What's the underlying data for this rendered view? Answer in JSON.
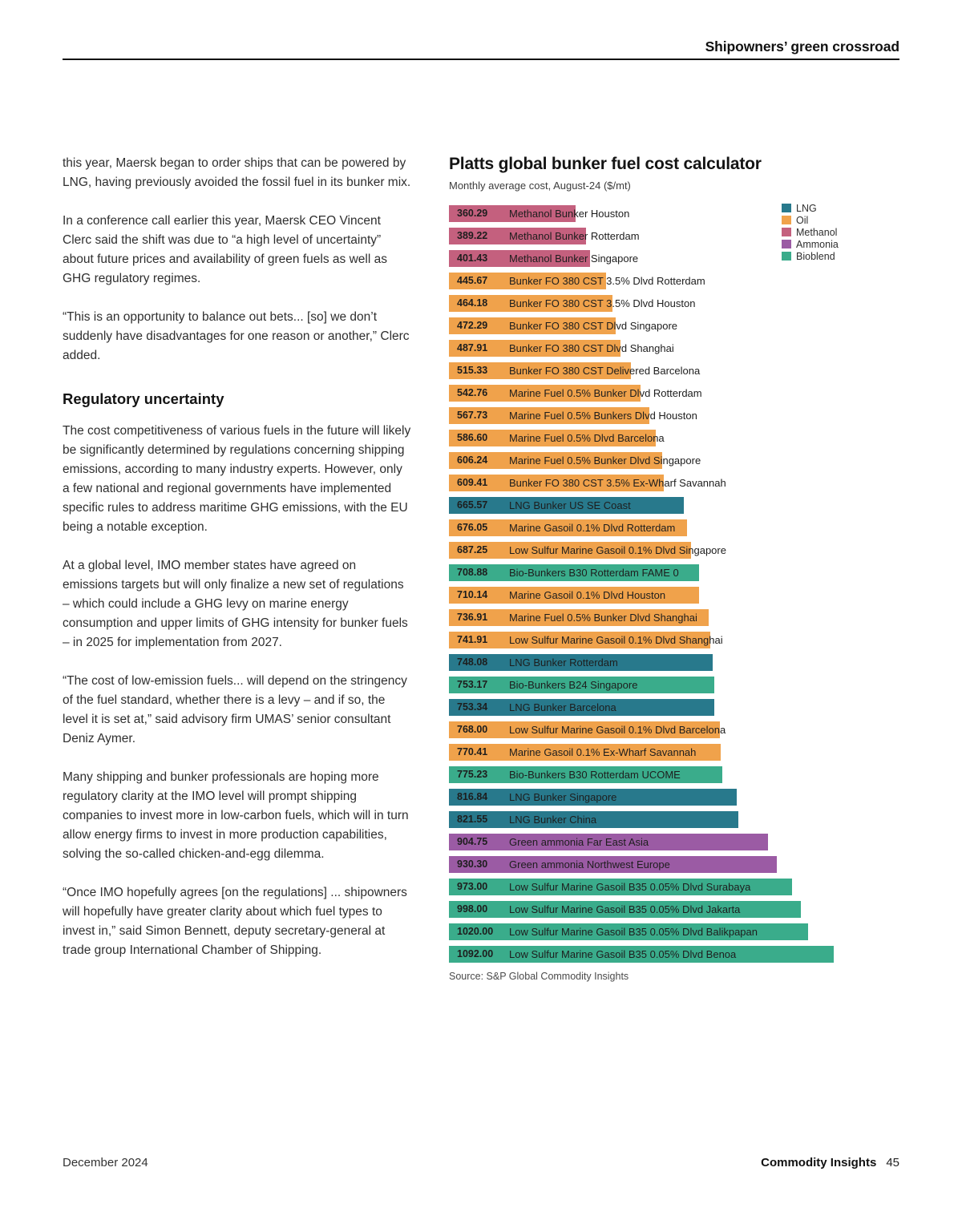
{
  "page": {
    "header": "Shipowners’ green crossroad",
    "footer_left": "December 2024",
    "footer_brand": "Commodity Insights",
    "footer_page": "45"
  },
  "article": {
    "blocks": [
      {
        "type": "p",
        "text": "this year, Maersk began to order ships that can be powered by LNG, having previously avoided the fossil fuel in its bunker mix."
      },
      {
        "type": "p",
        "text": "In a conference call earlier this year, Maersk CEO Vincent Clerc said the shift was due to “a high level of uncertainty” about future prices and availability of green fuels as well as GHG regulatory regimes."
      },
      {
        "type": "p",
        "text": "“This is an opportunity to balance out bets... [so] we don’t suddenly have disadvantages for one reason or another,” Clerc added."
      },
      {
        "type": "h2",
        "text": "Regulatory uncertainty"
      },
      {
        "type": "p",
        "text": "The cost competitiveness of various fuels in the future will likely be significantly determined by regulations concerning shipping emissions, according to many industry experts. However, only a few national and regional governments have implemented specific rules to address maritime GHG emissions, with the EU being a notable exception."
      },
      {
        "type": "p",
        "text": "At a global level, IMO member states have agreed on emissions targets but will only finalize a new set of regulations – which could include a GHG levy on marine energy consumption and upper limits of GHG intensity for bunker fuels – in 2025 for implementation from 2027."
      },
      {
        "type": "p",
        "text": "“The cost of low-emission fuels... will depend on the stringency of the fuel standard, whether there is a levy – and if so, the level it is set at,” said advisory firm UMAS’ senior consultant Deniz Aymer."
      },
      {
        "type": "p",
        "text": "Many shipping and bunker professionals are hoping more regulatory clarity at the IMO level will prompt shipping companies to invest more in low-carbon fuels, which will in turn allow energy firms to invest in more production capabilities, solving the so-called chicken-and-egg dilemma."
      },
      {
        "type": "p",
        "text": "“Once IMO hopefully agrees [on the regulations] ... shipowners will hopefully have greater clarity about which fuel types to invest in,” said Simon Bennett, deputy secretary-general at trade group International Chamber of Shipping."
      }
    ]
  },
  "chart_data": {
    "type": "bar",
    "orientation": "horizontal",
    "title": "Platts global bunker fuel cost calculator",
    "subtitle": "Monthly average cost, August-24 ($/mt)",
    "source": "Source: S&P Global Commodity Insights",
    "xlim": [
      0,
      1100
    ],
    "grid": false,
    "legend_position": "top-right",
    "series_colors": {
      "LNG": "#28798C",
      "Oil": "#F0A24B",
      "Methanol": "#C4607E",
      "Ammonia": "#9B5BA4",
      "Bioblend": "#3AAC8B"
    },
    "bars": [
      {
        "value": 360.29,
        "value_label": "360.29",
        "label": "Methanol Bunker Houston",
        "series": "Methanol"
      },
      {
        "value": 389.22,
        "value_label": "389.22",
        "label": "Methanol Bunker Rotterdam",
        "series": "Methanol"
      },
      {
        "value": 401.43,
        "value_label": "401.43",
        "label": "Methanol Bunker Singapore",
        "series": "Methanol"
      },
      {
        "value": 445.67,
        "value_label": "445.67",
        "label": "Bunker FO 380 CST 3.5% Dlvd Rotterdam",
        "series": "Oil"
      },
      {
        "value": 464.18,
        "value_label": "464.18",
        "label": "Bunker FO 380 CST 3.5% Dlvd Houston",
        "series": "Oil"
      },
      {
        "value": 472.29,
        "value_label": "472.29",
        "label": "Bunker FO 380 CST Dlvd Singapore",
        "series": "Oil"
      },
      {
        "value": 487.91,
        "value_label": "487.91",
        "label": "Bunker FO 380 CST Dlvd Shanghai",
        "series": "Oil"
      },
      {
        "value": 515.33,
        "value_label": "515.33",
        "label": "Bunker FO 380 CST Delivered Barcelona",
        "series": "Oil"
      },
      {
        "value": 542.76,
        "value_label": "542.76",
        "label": "Marine Fuel 0.5% Bunker Dlvd Rotterdam",
        "series": "Oil"
      },
      {
        "value": 567.73,
        "value_label": "567.73",
        "label": "Marine Fuel 0.5% Bunkers Dlvd Houston",
        "series": "Oil"
      },
      {
        "value": 586.6,
        "value_label": "586.60",
        "label": "Marine Fuel 0.5% Dlvd Barcelona",
        "series": "Oil"
      },
      {
        "value": 606.24,
        "value_label": "606.24",
        "label": "Marine Fuel 0.5% Bunker Dlvd Singapore",
        "series": "Oil"
      },
      {
        "value": 609.41,
        "value_label": "609.41",
        "label": "Bunker FO 380 CST 3.5% Ex-Wharf Savannah",
        "series": "Oil"
      },
      {
        "value": 665.57,
        "value_label": "665.57",
        "label": "LNG Bunker US SE Coast",
        "series": "LNG"
      },
      {
        "value": 676.05,
        "value_label": "676.05",
        "label": "Marine Gasoil 0.1% Dlvd Rotterdam",
        "series": "Oil"
      },
      {
        "value": 687.25,
        "value_label": "687.25",
        "label": "Low Sulfur Marine Gasoil 0.1% Dlvd Singapore",
        "series": "Oil"
      },
      {
        "value": 708.88,
        "value_label": "708.88",
        "label": "Bio-Bunkers B30 Rotterdam FAME 0",
        "series": "Bioblend"
      },
      {
        "value": 710.14,
        "value_label": "710.14",
        "label": "Marine Gasoil 0.1% Dlvd Houston",
        "series": "Oil"
      },
      {
        "value": 736.91,
        "value_label": "736.91",
        "label": "Marine Fuel 0.5% Bunker Dlvd Shanghai",
        "series": "Oil"
      },
      {
        "value": 741.91,
        "value_label": "741.91",
        "label": "Low Sulfur Marine Gasoil 0.1% Dlvd Shanghai",
        "series": "Oil"
      },
      {
        "value": 748.08,
        "value_label": "748.08",
        "label": "LNG Bunker Rotterdam",
        "series": "LNG"
      },
      {
        "value": 753.17,
        "value_label": "753.17",
        "label": "Bio-Bunkers B24 Singapore",
        "series": "Bioblend"
      },
      {
        "value": 753.34,
        "value_label": "753.34",
        "label": "LNG Bunker Barcelona",
        "series": "LNG"
      },
      {
        "value": 768.0,
        "value_label": "768.00",
        "label": "Low Sulfur Marine Gasoil 0.1% Dlvd Barcelona",
        "series": "Oil"
      },
      {
        "value": 770.41,
        "value_label": "770.41",
        "label": "Marine Gasoil 0.1% Ex-Wharf Savannah",
        "series": "Oil"
      },
      {
        "value": 775.23,
        "value_label": "775.23",
        "label": "Bio-Bunkers B30 Rotterdam UCOME",
        "series": "Bioblend"
      },
      {
        "value": 816.84,
        "value_label": "816.84",
        "label": "LNG Bunker Singapore",
        "series": "LNG"
      },
      {
        "value": 821.55,
        "value_label": "821.55",
        "label": "LNG Bunker China",
        "series": "LNG"
      },
      {
        "value": 904.75,
        "value_label": "904.75",
        "label": "Green ammonia Far East Asia",
        "series": "Ammonia"
      },
      {
        "value": 930.3,
        "value_label": "930.30",
        "label": "Green ammonia Northwest Europe",
        "series": "Ammonia"
      },
      {
        "value": 973.0,
        "value_label": "973.00",
        "label": "Low Sulfur Marine Gasoil B35 0.05% Dlvd Surabaya",
        "series": "Bioblend"
      },
      {
        "value": 998.0,
        "value_label": "998.00",
        "label": "Low Sulfur Marine Gasoil B35 0.05% Dlvd Jakarta",
        "series": "Bioblend"
      },
      {
        "value": 1020.0,
        "value_label": "1020.00",
        "label": "Low Sulfur Marine Gasoil B35 0.05% Dlvd Balikpapan",
        "series": "Bioblend"
      },
      {
        "value": 1092.0,
        "value_label": "1092.00",
        "label": "Low Sulfur Marine Gasoil B35 0.05% Dlvd Benoa",
        "series": "Bioblend"
      }
    ]
  }
}
